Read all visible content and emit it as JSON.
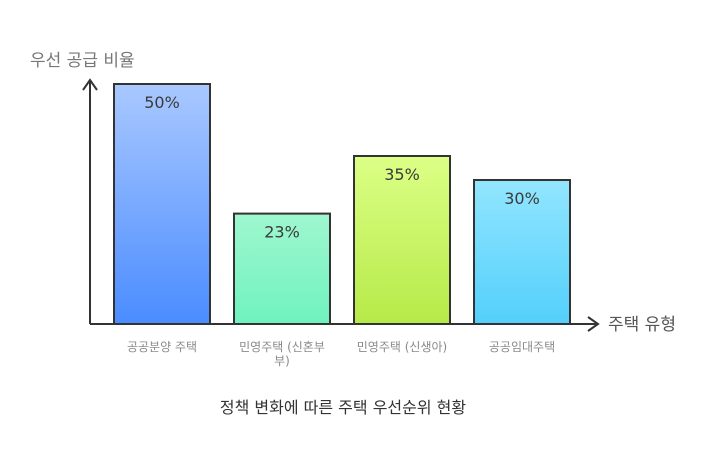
{
  "chart_data": {
    "type": "bar",
    "ylabel": "우선 공급 비율",
    "xlabel": "주택 유형",
    "caption": "정책 변화에 따른 주택 우선순위 현황",
    "categories": [
      [
        "공공분양 주택"
      ],
      [
        "민영주택 (신혼부",
        "부)"
      ],
      [
        "민영주택 (신생아)"
      ],
      [
        "공공임대주택"
      ]
    ],
    "values": [
      50,
      23,
      35,
      30
    ],
    "value_labels": [
      "50%",
      "23%",
      "35%",
      "30%"
    ],
    "ylim": [
      0,
      55
    ],
    "grid": false,
    "bar_gradients": [
      {
        "top": "#a9c8ff",
        "bottom": "#4a8cff"
      },
      {
        "top": "#9ff7cf",
        "bottom": "#6ff2be"
      },
      {
        "top": "#dcff86",
        "bottom": "#b6ea48"
      },
      {
        "top": "#92e6ff",
        "bottom": "#53cffb"
      }
    ]
  }
}
